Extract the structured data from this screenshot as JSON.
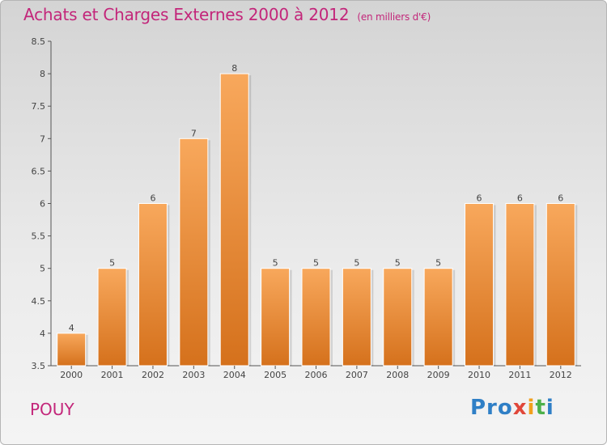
{
  "header": {
    "title": "Achats et Charges Externes 2000 à 2012",
    "unit": "(en milliers d'€)"
  },
  "footer": {
    "place": "POUY",
    "logo_parts": [
      "Pro",
      "x",
      "i",
      "t",
      "i"
    ]
  },
  "colors": {
    "bar_top": "#f8a85c",
    "bar_bottom": "#d5711c",
    "title": "#c3267a"
  },
  "chart_data": {
    "type": "bar",
    "title": "Achats et Charges Externes 2000 à 2012",
    "subtitle": "(en milliers d'€)",
    "categories": [
      "2000",
      "2001",
      "2002",
      "2003",
      "2004",
      "2005",
      "2006",
      "2007",
      "2008",
      "2009",
      "2010",
      "2011",
      "2012"
    ],
    "values": [
      4,
      5,
      6,
      7,
      8,
      5,
      5,
      5,
      5,
      5,
      6,
      6,
      6
    ],
    "ylim": [
      3.5,
      8.5
    ],
    "yticks": [
      "3.5",
      "4",
      "4.5",
      "5",
      "5.5",
      "6",
      "6.5",
      "7",
      "7.5",
      "8",
      "8.5"
    ],
    "grid": false,
    "legend": "none"
  }
}
